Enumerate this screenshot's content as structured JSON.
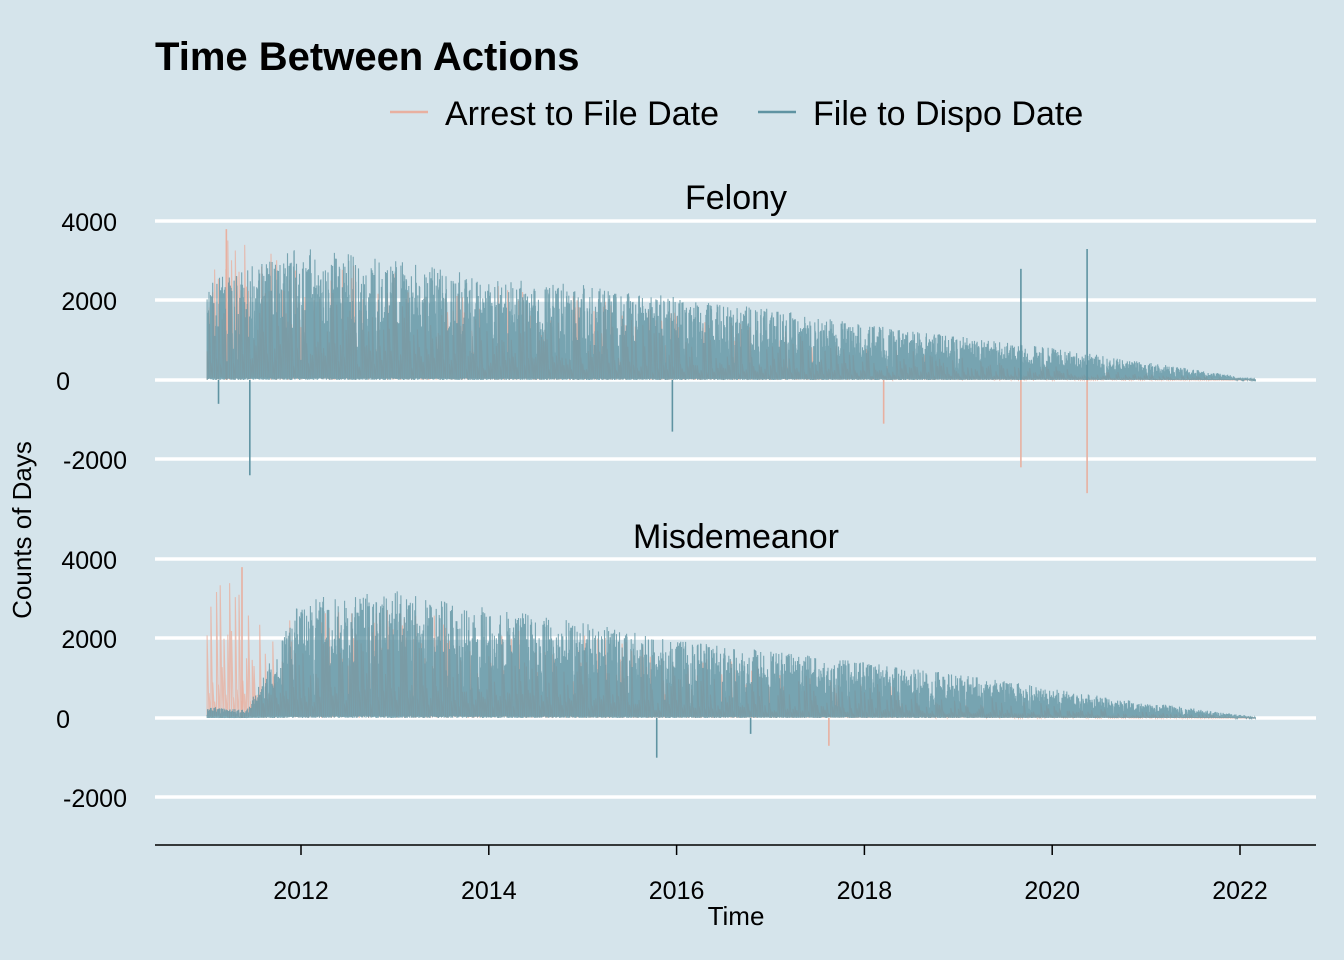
{
  "chart_data": {
    "type": "line",
    "title": "Time Between Actions",
    "xlabel": "Time",
    "ylabel": "Counts of Days",
    "legend_position": "top",
    "grid": true,
    "series": [
      {
        "name": "Arrest to File Date",
        "color": "#e8b0a0"
      },
      {
        "name": "File to Dispo Date",
        "color": "#5f93a2"
      }
    ],
    "x_ticks": [
      "2012",
      "2014",
      "2016",
      "2018",
      "2020",
      "2022"
    ],
    "y_ticks": [
      "4000",
      "2000",
      "0",
      "-2000"
    ],
    "xlim": [
      "2010-06-01",
      "2022-10-01"
    ],
    "ylim": [
      -3200,
      4200
    ],
    "facets": [
      {
        "name": "Felony",
        "summary": [
          {
            "x": "2011-01-01",
            "file_to_dispo_max": 2500,
            "arrest_to_file_max": 3600
          },
          {
            "x": "2011-06-01",
            "file_to_dispo_max": 2800,
            "arrest_to_file_max": 3500
          },
          {
            "x": "2012-01-01",
            "file_to_dispo_max": 3400,
            "arrest_to_file_max": 3300
          },
          {
            "x": "2013-01-01",
            "file_to_dispo_max": 3000,
            "arrest_to_file_max": 2900
          },
          {
            "x": "2014-01-01",
            "file_to_dispo_max": 2600,
            "arrest_to_file_max": 2400
          },
          {
            "x": "2015-01-01",
            "file_to_dispo_max": 2400,
            "arrest_to_file_max": 2100
          },
          {
            "x": "2016-01-01",
            "file_to_dispo_max": 2100,
            "arrest_to_file_max": 1700
          },
          {
            "x": "2017-01-01",
            "file_to_dispo_max": 1800,
            "arrest_to_file_max": 1300
          },
          {
            "x": "2018-01-01",
            "file_to_dispo_max": 1400,
            "arrest_to_file_max": 900
          },
          {
            "x": "2019-01-01",
            "file_to_dispo_max": 1100,
            "arrest_to_file_max": 600
          },
          {
            "x": "2020-01-01",
            "file_to_dispo_max": 800,
            "arrest_to_file_max": 350
          },
          {
            "x": "2021-01-01",
            "file_to_dispo_max": 450,
            "arrest_to_file_max": 150
          },
          {
            "x": "2022-03-01",
            "file_to_dispo_max": 30,
            "arrest_to_file_max": 10
          }
        ],
        "spikes": [
          {
            "series": "File to Dispo Date",
            "x": "2011-06-15",
            "y": -2400
          },
          {
            "series": "File to Dispo Date",
            "x": "2011-02-15",
            "y": -600
          },
          {
            "series": "File to Dispo Date",
            "x": "2015-12-15",
            "y": -1300
          },
          {
            "series": "File to Dispo Date",
            "x": "2019-09-01",
            "y": 2800
          },
          {
            "series": "File to Dispo Date",
            "x": "2020-05-15",
            "y": 3300
          },
          {
            "series": "Arrest to File Date",
            "x": "2011-03-15",
            "y": 3800
          },
          {
            "series": "Arrest to File Date",
            "x": "2018-03-15",
            "y": -1100
          },
          {
            "series": "Arrest to File Date",
            "x": "2019-09-01",
            "y": -2200
          },
          {
            "series": "Arrest to File Date",
            "x": "2020-05-15",
            "y": -2850
          }
        ]
      },
      {
        "name": "Misdemeanor",
        "summary": [
          {
            "x": "2011-01-01",
            "file_to_dispo_max": 300,
            "arrest_to_file_max": 3200
          },
          {
            "x": "2011-06-01",
            "file_to_dispo_max": 200,
            "arrest_to_file_max": 3800
          },
          {
            "x": "2012-01-01",
            "file_to_dispo_max": 3000,
            "arrest_to_file_max": 2600
          },
          {
            "x": "2013-01-01",
            "file_to_dispo_max": 3200,
            "arrest_to_file_max": 2900
          },
          {
            "x": "2014-01-01",
            "file_to_dispo_max": 2800,
            "arrest_to_file_max": 2500
          },
          {
            "x": "2015-01-01",
            "file_to_dispo_max": 2400,
            "arrest_to_file_max": 2200
          },
          {
            "x": "2016-01-01",
            "file_to_dispo_max": 2000,
            "arrest_to_file_max": 1600
          },
          {
            "x": "2017-01-01",
            "file_to_dispo_max": 1700,
            "arrest_to_file_max": 1300
          },
          {
            "x": "2018-01-01",
            "file_to_dispo_max": 1400,
            "arrest_to_file_max": 900
          },
          {
            "x": "2019-01-01",
            "file_to_dispo_max": 1100,
            "arrest_to_file_max": 600
          },
          {
            "x": "2020-01-01",
            "file_to_dispo_max": 750,
            "arrest_to_file_max": 350
          },
          {
            "x": "2021-01-01",
            "file_to_dispo_max": 400,
            "arrest_to_file_max": 150
          },
          {
            "x": "2022-03-01",
            "file_to_dispo_max": 30,
            "arrest_to_file_max": 10
          }
        ],
        "spikes": [
          {
            "series": "Arrest to File Date",
            "x": "2011-05-15",
            "y": 3800
          },
          {
            "series": "Arrest to File Date",
            "x": "2017-08-15",
            "y": -700
          },
          {
            "series": "File to Dispo Date",
            "x": "2015-10-15",
            "y": -1000
          },
          {
            "series": "File to Dispo Date",
            "x": "2016-10-15",
            "y": -400
          }
        ]
      }
    ]
  }
}
